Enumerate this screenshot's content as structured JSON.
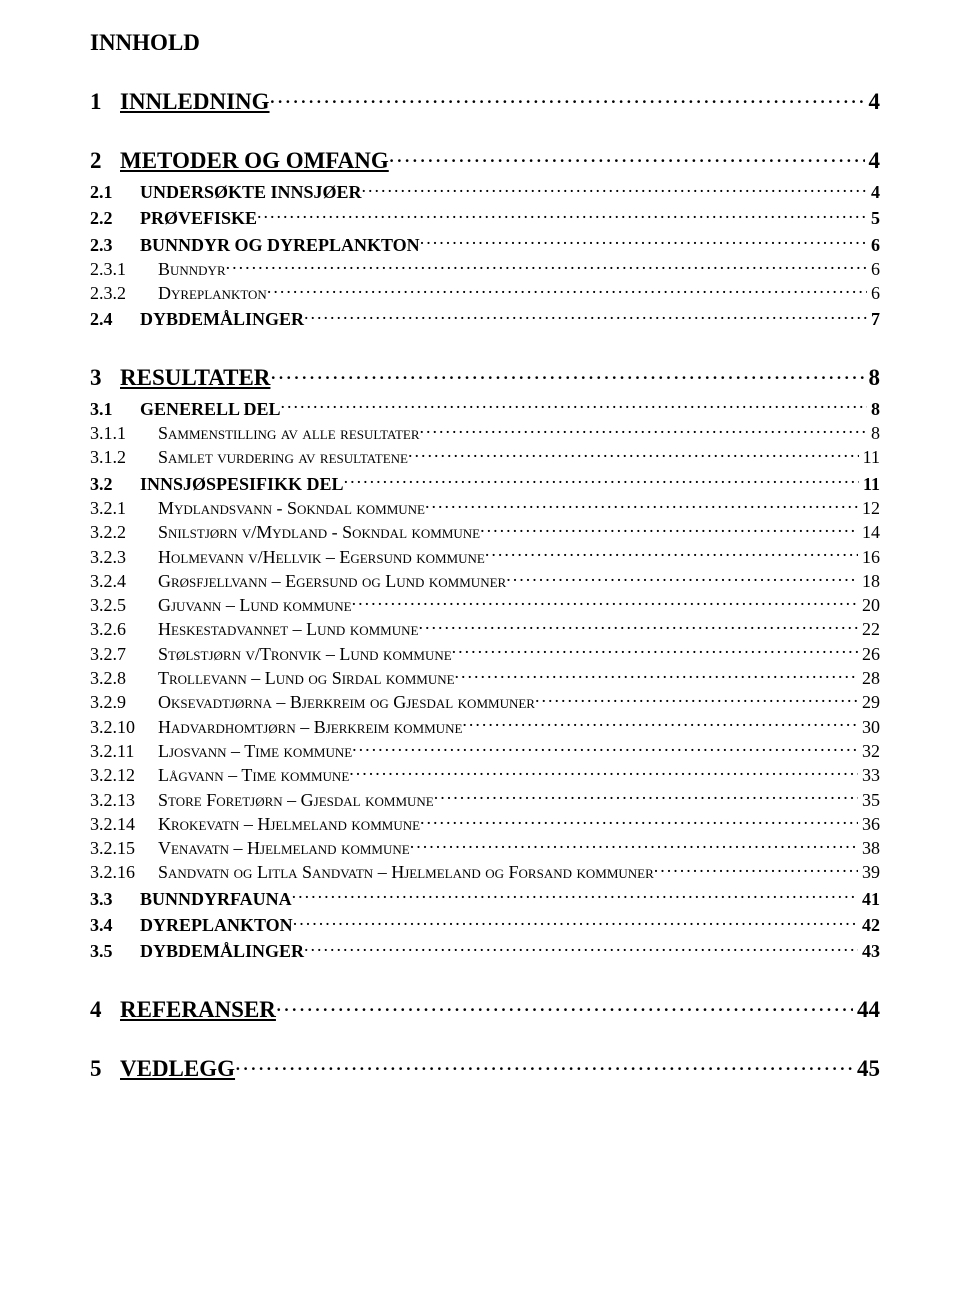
{
  "title": "INNHOLD",
  "toc": [
    {
      "level": 1,
      "num": "1",
      "text": "INNLEDNING",
      "page": "4"
    },
    {
      "level": 1,
      "num": "2",
      "text": "METODER OG OMFANG",
      "page": "4"
    },
    {
      "level": 2,
      "num": "2.1",
      "text": "UNDERSØKTE INNSJØER",
      "page": "4",
      "smallcaps": true
    },
    {
      "level": 2,
      "num": "2.2",
      "text": "PRØVEFISKE",
      "page": "5",
      "smallcaps": true
    },
    {
      "level": 2,
      "num": "2.3",
      "text": "BUNNDYR OG DYREPLANKTON",
      "page": "6",
      "smallcaps": true
    },
    {
      "level": 3,
      "num": "2.3.1",
      "text": "Bunndyr",
      "page": "6"
    },
    {
      "level": 3,
      "num": "2.3.2",
      "text": "Dyreplankton",
      "page": "6"
    },
    {
      "level": 2,
      "num": "2.4",
      "text": "DYBDEMÅLINGER",
      "page": "7",
      "smallcaps": true
    },
    {
      "level": 1,
      "num": "3",
      "text": "RESULTATER",
      "page": "8"
    },
    {
      "level": 2,
      "num": "3.1",
      "text": "GENERELL DEL",
      "page": "8",
      "smallcaps": true
    },
    {
      "level": 3,
      "num": "3.1.1",
      "text": "Sammenstilling av alle resultater",
      "page": "8"
    },
    {
      "level": 3,
      "num": "3.1.2",
      "text": "Samlet vurdering av resultatene",
      "page": "11"
    },
    {
      "level": 2,
      "num": "3.2",
      "text": "INNSJØSPESIFIKK DEL",
      "page": "11",
      "smallcaps": true
    },
    {
      "level": 3,
      "num": "3.2.1",
      "text": "Mydlandsvann - Sokndal kommune",
      "page": "12"
    },
    {
      "level": 3,
      "num": "3.2.2",
      "text": "Snilstjørn v/Mydland - Sokndal kommune",
      "page": "14"
    },
    {
      "level": 3,
      "num": "3.2.3",
      "text": "Holmevann v/Hellvik – Egersund kommune",
      "page": "16"
    },
    {
      "level": 3,
      "num": "3.2.4",
      "text": "Grøsfjellvann – Egersund og Lund kommuner",
      "page": "18"
    },
    {
      "level": 3,
      "num": "3.2.5",
      "text": "Gjuvann – Lund kommune",
      "page": "20"
    },
    {
      "level": 3,
      "num": "3.2.6",
      "text": "Heskestadvannet – Lund kommune",
      "page": "22"
    },
    {
      "level": 3,
      "num": "3.2.7",
      "text": "Stølstjørn v/Tronvik – Lund kommune",
      "page": "26"
    },
    {
      "level": 3,
      "num": "3.2.8",
      "text": "Trollevann – Lund og Sirdal kommune",
      "page": "28"
    },
    {
      "level": 3,
      "num": "3.2.9",
      "text": "Oksevadtjørna – Bjerkreim og Gjesdal kommuner",
      "page": "29"
    },
    {
      "level": 3,
      "num": "3.2.10",
      "text": "Hadvardhomtjørn – Bjerkreim kommune",
      "page": "30"
    },
    {
      "level": 3,
      "num": "3.2.11",
      "text": "Ljosvann – Time kommune",
      "page": "32"
    },
    {
      "level": 3,
      "num": "3.2.12",
      "text": "Lågvann – Time kommune",
      "page": "33"
    },
    {
      "level": 3,
      "num": "3.2.13",
      "text": "Store Foretjørn – Gjesdal kommune",
      "page": "35"
    },
    {
      "level": 3,
      "num": "3.2.14",
      "text": "Krokevatn – Hjelmeland kommune",
      "page": "36"
    },
    {
      "level": 3,
      "num": "3.2.15",
      "text": "Venavatn – Hjelmeland kommune",
      "page": "38"
    },
    {
      "level": 3,
      "num": "3.2.16",
      "text": "Sandvatn og Litla Sandvatn – Hjelmeland og Forsand kommuner",
      "page": "39"
    },
    {
      "level": 2,
      "num": "3.3",
      "text": "BUNNDYRFAUNA",
      "page": "41",
      "smallcaps": true
    },
    {
      "level": 2,
      "num": "3.4",
      "text": "DYREPLANKTON",
      "page": "42",
      "smallcaps": true
    },
    {
      "level": 2,
      "num": "3.5",
      "text": "DYBDEMÅLINGER",
      "page": "43",
      "smallcaps": true
    },
    {
      "level": 1,
      "num": "4",
      "text": "REFERANSER",
      "page": "44"
    },
    {
      "level": 1,
      "num": "5",
      "text": "VEDLEGG",
      "page": "45"
    }
  ],
  "colors": {
    "text": "#000000",
    "background": "#ffffff"
  },
  "typography": {
    "title_fontsize": 23,
    "lvl1_fontsize": 23,
    "lvl2_fontsize": 18,
    "lvl3_fontsize": 18,
    "font_family": "Times New Roman"
  }
}
